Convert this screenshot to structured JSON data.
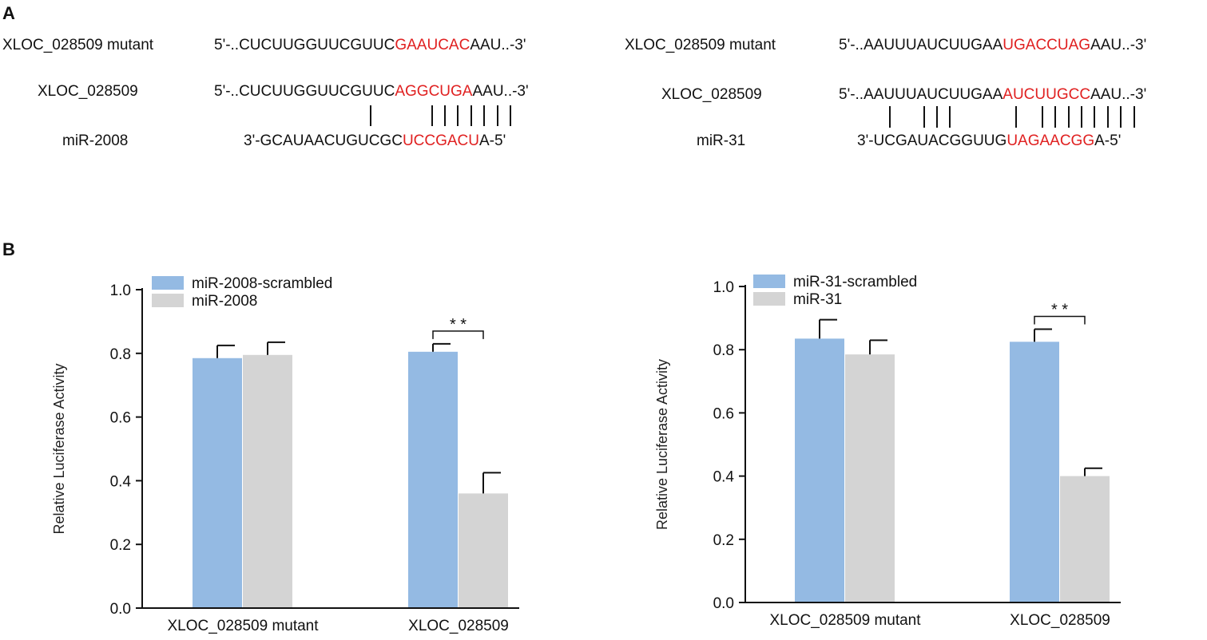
{
  "panels": {
    "a": "A",
    "b": "B"
  },
  "alignments": [
    {
      "mutant_label": "XLOC_028509 mutant",
      "mutant_seq": {
        "pre": "5'-..CUCUUGGUUCGUUC",
        "hl": "GAAUCAC",
        "post": "AAU..-3'"
      },
      "wt_label": "XLOC_028509",
      "wt_seq": {
        "pre": "5'-..CUCUUGGUUCGUUC",
        "hl": "AGGCUGA",
        "post": "AAU..-3'"
      },
      "mir_label": "miR-2008",
      "mir_seq": {
        "pre": "3'-GCAUAACUGUCGC",
        "hl": "UCCGACU",
        "post": "A-5'"
      }
    },
    {
      "mutant_label": "XLOC_028509 mutant",
      "mutant_seq": {
        "pre": "5'-..AAUUUAUCUUGAA",
        "hl": "UGACCUAG",
        "post": "AAU..-3'"
      },
      "wt_label": "XLOC_028509",
      "wt_seq": {
        "pre": "5'-..AAUUUAUCUUGAA",
        "hl": "AUCUUGCC",
        "post": "AAU..-3'"
      },
      "mir_label": "miR-31",
      "mir_seq": {
        "pre": "3'-UCGAUACGGUUG",
        "hl": "UAGAACGG",
        "post": "A-5'"
      }
    }
  ],
  "colors": {
    "scrambled": "#94bae3",
    "mirna": "#d4d4d4",
    "highlight": "#e02020",
    "axis": "#111111"
  },
  "chart_data": [
    {
      "type": "bar",
      "categories": [
        "XLOC_028509 mutant",
        "XLOC_028509"
      ],
      "series": [
        {
          "name": "miR-2008-scrambled",
          "values": [
            0.785,
            0.805
          ],
          "errors": [
            0.04,
            0.025
          ]
        },
        {
          "name": "miR-2008",
          "values": [
            0.795,
            0.36
          ],
          "errors": [
            0.04,
            0.065
          ]
        }
      ],
      "ylabel": "Relative Luciferase Activity",
      "ylim": [
        0,
        1.0
      ],
      "yticks": [
        "0.0",
        "0.2",
        "0.4",
        "0.6",
        "0.8",
        "1.0"
      ],
      "significance": [
        {
          "category": 1,
          "label": "**"
        }
      ],
      "legend": "top-left"
    },
    {
      "type": "bar",
      "categories": [
        "XLOC_028509 mutant",
        "XLOC_028509"
      ],
      "series": [
        {
          "name": "miR-31-scrambled",
          "values": [
            0.835,
            0.825
          ],
          "errors": [
            0.06,
            0.04
          ]
        },
        {
          "name": "miR-31",
          "values": [
            0.785,
            0.4
          ],
          "errors": [
            0.045,
            0.025
          ]
        }
      ],
      "ylabel": "Relative Luciferase Activity",
      "ylim": [
        0,
        1.0
      ],
      "yticks": [
        "0.0",
        "0.2",
        "0.4",
        "0.6",
        "0.8",
        "1.0"
      ],
      "significance": [
        {
          "category": 1,
          "label": "**"
        }
      ],
      "legend": "top-left"
    }
  ]
}
